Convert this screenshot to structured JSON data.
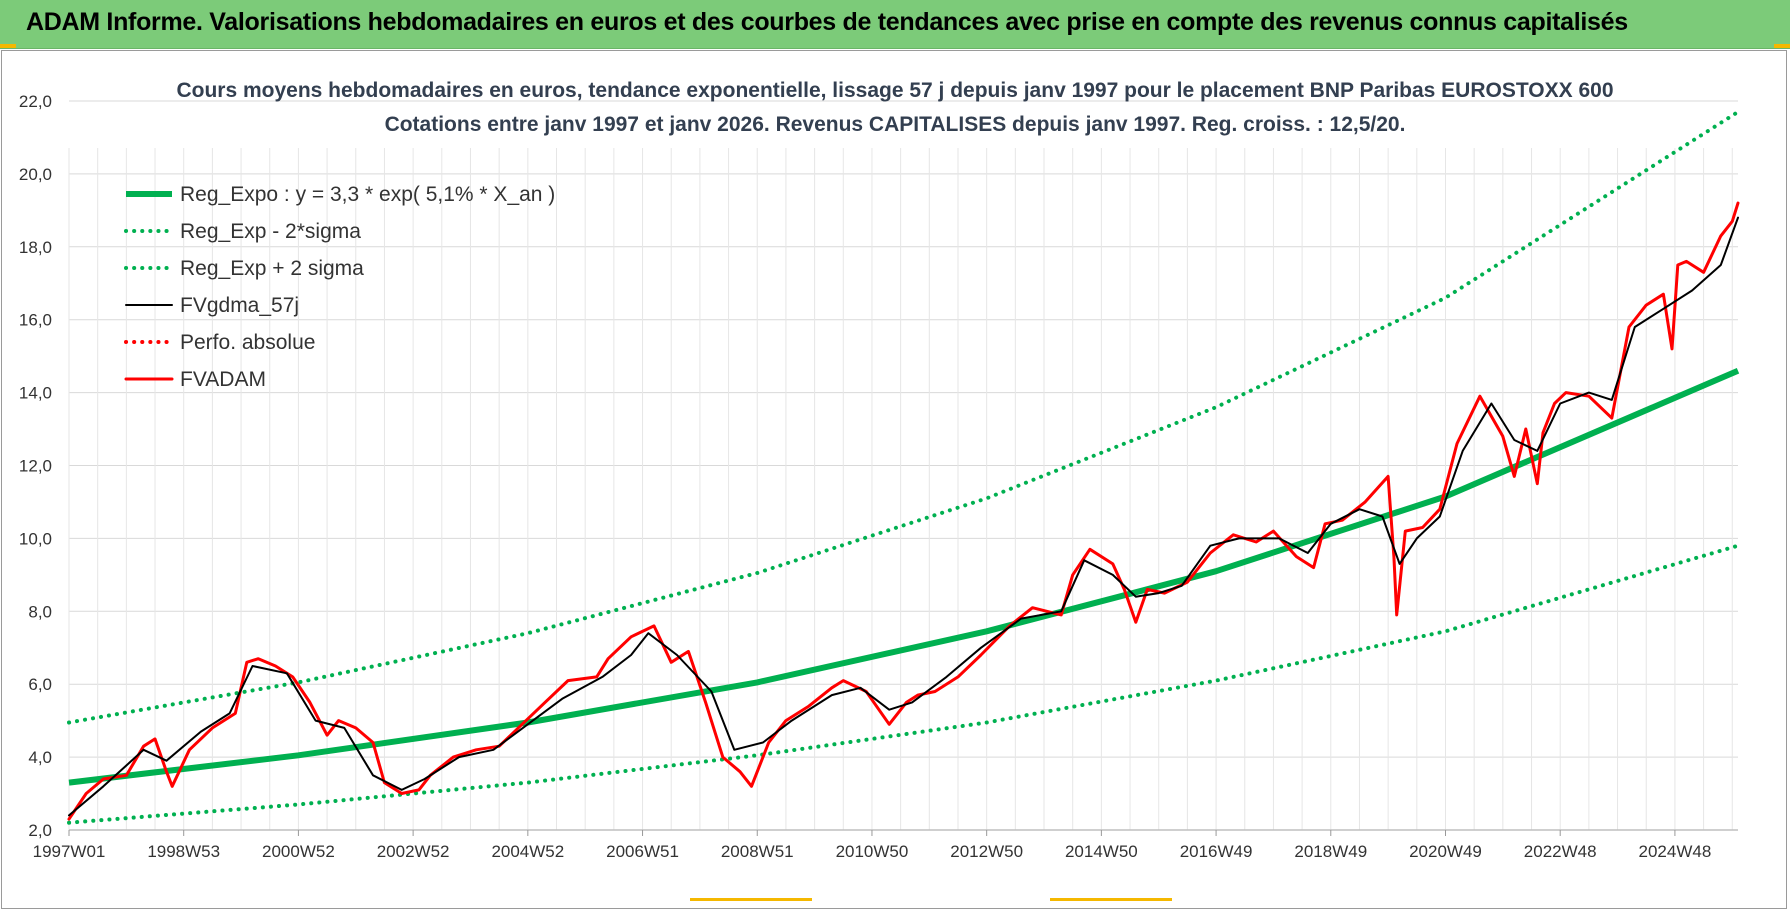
{
  "banner": {
    "title": "ADAM Informe. Valorisations hebdomadaires en euros et des courbes de tendances avec prise en compte des revenus connus capitalisés"
  },
  "colors": {
    "banner_bg": "#7ccb79",
    "regression": "#00b050",
    "smoothed": "#000000",
    "price": "#ff0000"
  },
  "chart_data": {
    "type": "line",
    "title": "Cours moyens hebdomadaires en euros, tendance exponentielle, lissage 57 j depuis janv 1997 pour le placement BNP Paribas EUROSTOXX 600",
    "subtitle": "Cotations entre janv 1997 et janv 2026. Revenus CAPITALISES depuis janv 1997. Reg. croiss. : 12,5/20.",
    "ylim": [
      2.0,
      22.0
    ],
    "y_ticks": [
      "2,0",
      "4,0",
      "6,0",
      "8,0",
      "10,0",
      "12,0",
      "14,0",
      "16,0",
      "18,0",
      "20,0",
      "22,0"
    ],
    "x_ticks": [
      {
        "label": "1997W01",
        "t": 1997.0
      },
      {
        "label": "1998W53",
        "t": 1999.0
      },
      {
        "label": "2000W52",
        "t": 2001.0
      },
      {
        "label": "2002W52",
        "t": 2003.0
      },
      {
        "label": "2004W52",
        "t": 2005.0
      },
      {
        "label": "2006W51",
        "t": 2007.0
      },
      {
        "label": "2008W51",
        "t": 2009.0
      },
      {
        "label": "2010W50",
        "t": 2011.0
      },
      {
        "label": "2012W50",
        "t": 2013.0
      },
      {
        "label": "2014W50",
        "t": 2015.0
      },
      {
        "label": "2016W49",
        "t": 2017.0
      },
      {
        "label": "2018W49",
        "t": 2019.0
      },
      {
        "label": "2020W49",
        "t": 2021.0
      },
      {
        "label": "2022W48",
        "t": 2023.0
      },
      {
        "label": "2024W48",
        "t": 2025.0
      }
    ],
    "xlim": [
      1997.0,
      2026.1
    ],
    "legend_position": "top-left",
    "grid": true,
    "series": [
      {
        "name": "Reg_Expo : y = 3,3 * exp( 5,1% *  X_an )",
        "style": "solid",
        "color": "#00b050",
        "x": [
          1997.0,
          2001.0,
          2005.0,
          2009.0,
          2013.0,
          2017.0,
          2021.0,
          2026.1
        ],
        "y": [
          3.3,
          4.05,
          4.95,
          6.05,
          7.45,
          9.1,
          11.15,
          14.6
        ]
      },
      {
        "name": "Reg_Exp - 2*sigma",
        "style": "dotted",
        "color": "#00b050",
        "x": [
          1997.0,
          2001.0,
          2005.0,
          2009.0,
          2013.0,
          2017.0,
          2021.0,
          2026.1
        ],
        "y": [
          2.2,
          2.7,
          3.3,
          4.05,
          4.95,
          6.1,
          7.45,
          9.8
        ]
      },
      {
        "name": "Reg_Exp + 2 sigma",
        "style": "dotted",
        "color": "#00b050",
        "x": [
          1997.0,
          2001.0,
          2005.0,
          2009.0,
          2013.0,
          2017.0,
          2021.0,
          2026.1
        ],
        "y": [
          4.95,
          6.05,
          7.4,
          9.05,
          11.1,
          13.6,
          16.6,
          21.7
        ]
      },
      {
        "name": "FVgdma_57j",
        "style": "solid",
        "color": "#000000",
        "width": 2,
        "x": [
          1997.0,
          1997.6,
          1998.3,
          1998.7,
          1999.3,
          1999.8,
          2000.2,
          2000.8,
          2001.3,
          2001.8,
          2002.3,
          2002.8,
          2003.2,
          2003.8,
          2004.4,
          2005.0,
          2005.6,
          2006.3,
          2006.8,
          2007.1,
          2007.6,
          2008.2,
          2008.6,
          2009.1,
          2009.6,
          2010.3,
          2010.8,
          2011.3,
          2011.7,
          2012.3,
          2012.9,
          2013.6,
          2014.3,
          2014.7,
          2015.2,
          2015.6,
          2016.0,
          2016.4,
          2016.9,
          2017.4,
          2018.1,
          2018.6,
          2019.0,
          2019.5,
          2019.9,
          2020.2,
          2020.5,
          2020.9,
          2021.3,
          2021.8,
          2022.2,
          2022.6,
          2023.0,
          2023.5,
          2023.9,
          2024.3,
          2024.8,
          2025.3,
          2025.8,
          2026.1
        ],
        "y": [
          2.4,
          3.2,
          4.2,
          3.9,
          4.7,
          5.2,
          6.5,
          6.3,
          5.0,
          4.8,
          3.5,
          3.1,
          3.4,
          4.0,
          4.2,
          4.9,
          5.6,
          6.2,
          6.8,
          7.4,
          6.8,
          5.8,
          4.2,
          4.4,
          5.0,
          5.7,
          5.9,
          5.3,
          5.5,
          6.2,
          7.0,
          7.8,
          8.0,
          9.4,
          9.0,
          8.4,
          8.5,
          8.7,
          9.8,
          10.0,
          10.0,
          9.6,
          10.4,
          10.8,
          10.6,
          9.3,
          10.0,
          10.6,
          12.4,
          13.7,
          12.7,
          12.4,
          13.7,
          14.0,
          13.8,
          15.8,
          16.3,
          16.8,
          17.5,
          18.8
        ]
      },
      {
        "name": "Perfo. absolue",
        "style": "dotted",
        "color": "#ff0000",
        "x": [],
        "y": []
      },
      {
        "name": "FVADAM",
        "style": "solid",
        "color": "#ff0000",
        "width": 3,
        "x": [
          1997.0,
          1997.3,
          1997.6,
          1998.0,
          1998.3,
          1998.5,
          1998.7,
          1998.8,
          1999.1,
          1999.5,
          1999.9,
          2000.1,
          2000.3,
          2000.6,
          2000.9,
          2001.2,
          2001.5,
          2001.7,
          2002.0,
          2002.3,
          2002.5,
          2002.8,
          2003.1,
          2003.3,
          2003.7,
          2004.1,
          2004.5,
          2004.9,
          2005.3,
          2005.7,
          2006.2,
          2006.4,
          2006.8,
          2007.2,
          2007.5,
          2007.8,
          2008.1,
          2008.4,
          2008.7,
          2008.9,
          2009.2,
          2009.5,
          2009.9,
          2010.3,
          2010.5,
          2010.9,
          2011.3,
          2011.6,
          2011.8,
          2012.1,
          2012.5,
          2012.9,
          2013.4,
          2013.8,
          2014.3,
          2014.5,
          2014.8,
          2015.2,
          2015.4,
          2015.6,
          2015.8,
          2016.1,
          2016.5,
          2016.9,
          2017.3,
          2017.7,
          2018.0,
          2018.4,
          2018.7,
          2018.9,
          2019.2,
          2019.6,
          2020.0,
          2020.1,
          2020.15,
          2020.3,
          2020.6,
          2020.9,
          2021.2,
          2021.6,
          2022.0,
          2022.2,
          2022.4,
          2022.6,
          2022.7,
          2022.9,
          2023.1,
          2023.5,
          2023.9,
          2024.2,
          2024.5,
          2024.8,
          2024.95,
          2025.05,
          2025.2,
          2025.5,
          2025.8,
          2026.0,
          2026.1
        ],
        "y": [
          2.3,
          3.0,
          3.4,
          3.5,
          4.3,
          4.5,
          3.6,
          3.2,
          4.2,
          4.8,
          5.2,
          6.6,
          6.7,
          6.5,
          6.2,
          5.5,
          4.6,
          5.0,
          4.8,
          4.4,
          3.3,
          3.0,
          3.1,
          3.5,
          4.0,
          4.2,
          4.3,
          4.9,
          5.5,
          6.1,
          6.2,
          6.7,
          7.3,
          7.6,
          6.6,
          6.9,
          5.5,
          4.0,
          3.6,
          3.2,
          4.4,
          5.0,
          5.4,
          5.9,
          6.1,
          5.8,
          4.9,
          5.5,
          5.7,
          5.8,
          6.2,
          6.8,
          7.6,
          8.1,
          7.9,
          9.0,
          9.7,
          9.3,
          8.6,
          7.7,
          8.6,
          8.5,
          8.8,
          9.6,
          10.1,
          9.9,
          10.2,
          9.5,
          9.2,
          10.4,
          10.5,
          11.0,
          11.7,
          9.5,
          7.9,
          10.2,
          10.3,
          10.8,
          12.6,
          13.9,
          12.8,
          11.7,
          13.0,
          11.5,
          12.9,
          13.7,
          14.0,
          13.9,
          13.3,
          15.8,
          16.4,
          16.7,
          15.2,
          17.5,
          17.6,
          17.3,
          18.3,
          18.7,
          19.2
        ]
      }
    ]
  }
}
